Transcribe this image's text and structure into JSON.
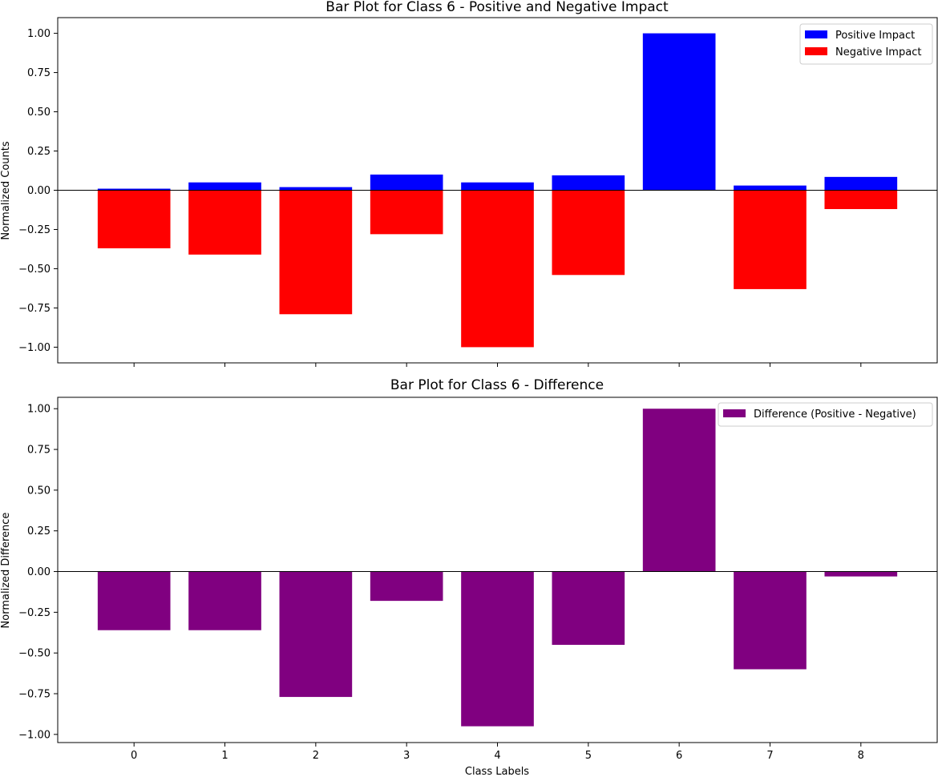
{
  "chart_data": [
    {
      "type": "bar",
      "title": "Bar Plot for Class 6 - Positive and Negative Impact",
      "xlabel": "",
      "ylabel": "Normalized Counts",
      "categories": [
        "0",
        "1",
        "2",
        "3",
        "4",
        "5",
        "6",
        "7",
        "8"
      ],
      "ylim": [
        -1.1,
        1.1
      ],
      "yticks": [
        "1.00",
        "0.75",
        "0.50",
        "0.25",
        "0.00",
        "−0.25",
        "−0.50",
        "−0.75",
        "−1.00"
      ],
      "yticks_values": [
        1.0,
        0.75,
        0.5,
        0.25,
        0.0,
        -0.25,
        -0.5,
        -0.75,
        -1.0
      ],
      "legend_position": "top-right",
      "grid": false,
      "series": [
        {
          "name": "Positive Impact",
          "color": "#0000ff",
          "values": [
            0.01,
            0.05,
            0.02,
            0.1,
            0.05,
            0.095,
            1.0,
            0.03,
            0.085
          ]
        },
        {
          "name": "Negative Impact",
          "color": "#ff0000",
          "values": [
            -0.37,
            -0.41,
            -0.79,
            -0.28,
            -1.0,
            -0.54,
            0.0,
            -0.63,
            -0.12
          ]
        }
      ]
    },
    {
      "type": "bar",
      "title": "Bar Plot for Class 6 - Difference",
      "xlabel": "Class Labels",
      "ylabel": "Normalized Difference",
      "categories": [
        "0",
        "1",
        "2",
        "3",
        "4",
        "5",
        "6",
        "7",
        "8"
      ],
      "ylim": [
        -1.05,
        1.07
      ],
      "yticks": [
        "1.00",
        "0.75",
        "0.50",
        "0.25",
        "0.00",
        "−0.25",
        "−0.50",
        "−0.75",
        "−1.00"
      ],
      "yticks_values": [
        1.0,
        0.75,
        0.5,
        0.25,
        0.0,
        -0.25,
        -0.5,
        -0.75,
        -1.0
      ],
      "legend_position": "top-right",
      "grid": false,
      "series": [
        {
          "name": "Difference (Positive - Negative)",
          "color": "#800080",
          "values": [
            -0.36,
            -0.36,
            -0.77,
            -0.18,
            -0.95,
            -0.45,
            1.0,
            -0.6,
            -0.03
          ]
        }
      ]
    }
  ]
}
